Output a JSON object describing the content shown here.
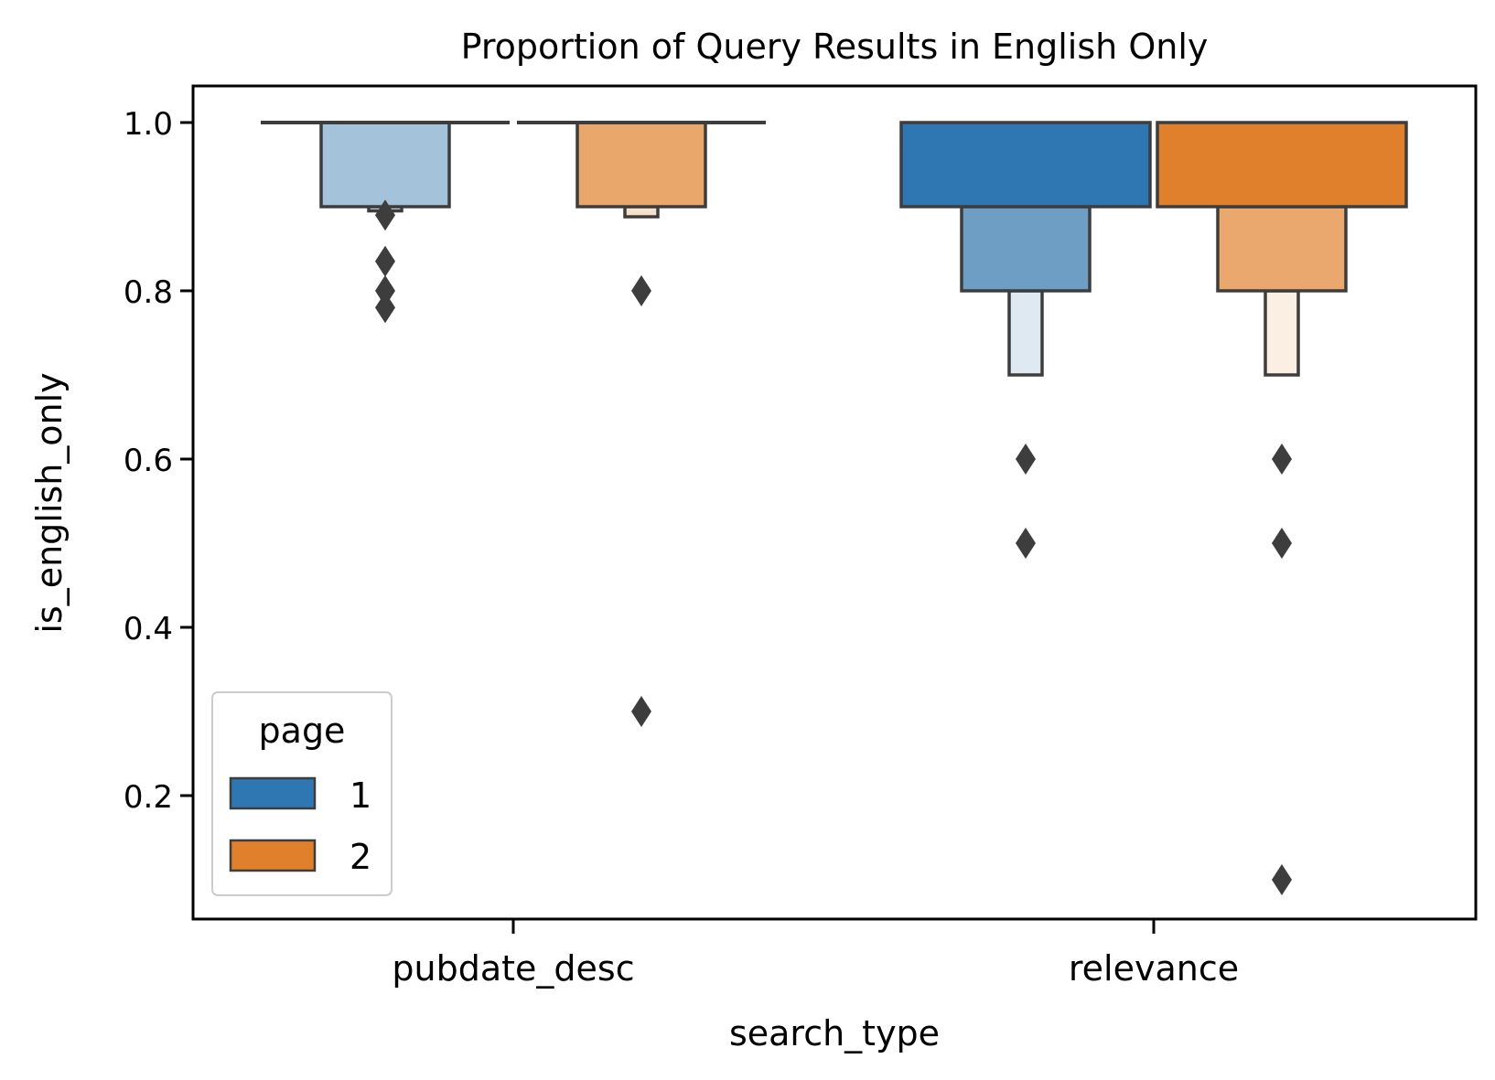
{
  "chart_data": {
    "type": "boxen",
    "title": "Proportion of Query Results in English Only",
    "xlabel": "search_type",
    "ylabel": "is_english_only",
    "categories": [
      "pubdate_desc",
      "relevance"
    ],
    "yticks": [
      "0.2",
      "0.4",
      "0.6",
      "0.8",
      "1.0"
    ],
    "ylim": [
      0.05,
      1.045
    ],
    "grid": false,
    "legend": {
      "title": "page",
      "placement": "lower-left",
      "entries": [
        {
          "label": "1",
          "color": "#2f77b3"
        },
        {
          "label": "2",
          "color": "#e0802c"
        }
      ]
    },
    "series": [
      {
        "name": "1",
        "category": "pubdate_desc",
        "boxes": [
          {
            "lo": 1.0,
            "hi": 1.0,
            "level": 0,
            "fill": "#2f77b3"
          },
          {
            "lo": 0.9,
            "hi": 1.0,
            "level": 1,
            "fill": "#a5c2db"
          },
          {
            "lo": 0.895,
            "hi": 0.9,
            "level": 2,
            "fill": "#dde8f1"
          }
        ],
        "outliers": [
          0.89,
          0.835,
          0.8,
          0.78
        ]
      },
      {
        "name": "2",
        "category": "pubdate_desc",
        "boxes": [
          {
            "lo": 1.0,
            "hi": 1.0,
            "level": 0,
            "fill": "#e0802c"
          },
          {
            "lo": 0.9,
            "hi": 1.0,
            "level": 1,
            "fill": "#eaa76c"
          },
          {
            "lo": 0.888,
            "hi": 0.9,
            "level": 2,
            "fill": "#f6e0cb"
          }
        ],
        "outliers": [
          0.8,
          0.3
        ]
      },
      {
        "name": "1",
        "category": "relevance",
        "boxes": [
          {
            "lo": 0.9,
            "hi": 1.0,
            "level": 0,
            "fill": "#2f77b3"
          },
          {
            "lo": 0.8,
            "hi": 0.9,
            "level": 1,
            "fill": "#6f9ec4"
          },
          {
            "lo": 0.7,
            "hi": 0.8,
            "level": 2,
            "fill": "#dfe9f1"
          }
        ],
        "outliers": [
          0.6,
          0.5
        ]
      },
      {
        "name": "2",
        "category": "relevance",
        "boxes": [
          {
            "lo": 0.9,
            "hi": 1.0,
            "level": 0,
            "fill": "#e0802c"
          },
          {
            "lo": 0.8,
            "hi": 0.9,
            "level": 1,
            "fill": "#eba86e"
          },
          {
            "lo": 0.7,
            "hi": 0.8,
            "level": 2,
            "fill": "#fbeee2"
          }
        ],
        "outliers": [
          0.6,
          0.5,
          0.1
        ]
      }
    ]
  }
}
